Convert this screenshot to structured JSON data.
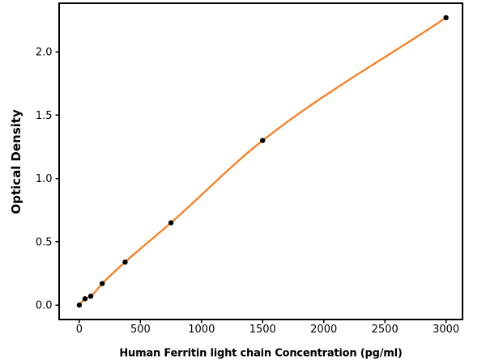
{
  "chart_data": {
    "type": "scatter",
    "title": "",
    "xlabel": "Human Ferritin light chain Concentration (pg/ml)",
    "ylabel": "Optical Density",
    "x": [
      0,
      46.9,
      93.8,
      187.5,
      375,
      750,
      1500,
      3000
    ],
    "series": [
      {
        "name": "standard-points",
        "type": "scatter",
        "marker": "circle",
        "color": "#000000",
        "values": [
          0.0,
          0.05,
          0.07,
          0.17,
          0.34,
          0.65,
          1.3,
          2.27
        ]
      },
      {
        "name": "fitted-curve",
        "type": "line",
        "color": "#ff740e",
        "values": [
          0.0,
          0.05,
          0.07,
          0.17,
          0.34,
          0.65,
          1.3,
          2.27
        ]
      }
    ],
    "xlim": [
      -165,
      3135
    ],
    "ylim": [
      -0.114,
      2.384
    ],
    "x_tick_values": [
      0,
      500,
      1000,
      1500,
      2000,
      2500,
      3000
    ],
    "x_tick_labels": [
      "0",
      "500",
      "1000",
      "1500",
      "2000",
      "2500",
      "3000"
    ],
    "y_tick_values": [
      0.0,
      0.5,
      1.0,
      1.5,
      2.0
    ],
    "y_tick_labels": [
      "0.0",
      "0.5",
      "1.0",
      "1.5",
      "2.0"
    ],
    "grid": false,
    "legend": "none",
    "background": "#ffffff",
    "axis_color": "#000000",
    "text_color": "#000000",
    "tick_font_size": 13
  }
}
